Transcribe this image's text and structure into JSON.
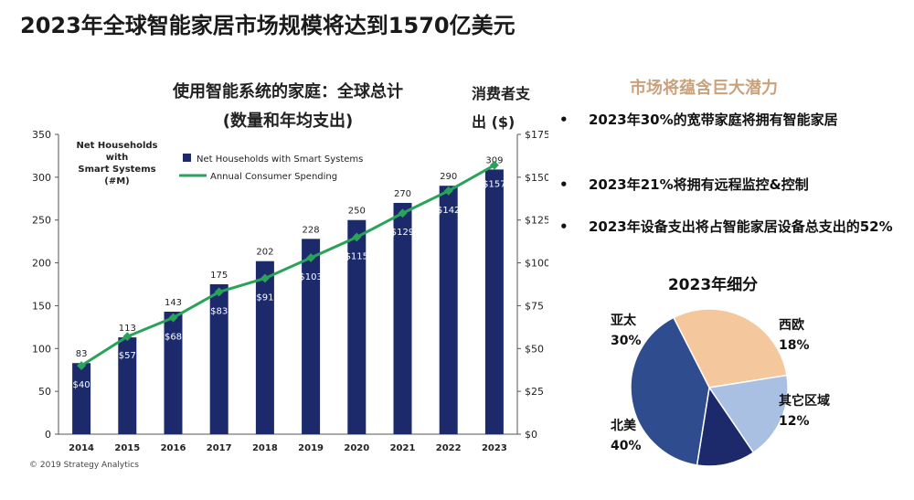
{
  "title": "2023年全球智能家居市场规模将达到1570亿美元",
  "chart_data": [
    {
      "type": "bar",
      "title": "使用智能系统的家庭：全球总计",
      "subtitle": "(数量和年均支出)",
      "categories": [
        "2014",
        "2015",
        "2016",
        "2017",
        "2018",
        "2019",
        "2020",
        "2021",
        "2022",
        "2023"
      ],
      "y_axis_label": "Net Households with Smart Systems (#M)",
      "y2_axis_label": [
        "消费者支",
        "出 ($)"
      ],
      "ylim": [
        0,
        350
      ],
      "yticks": [
        "0",
        "50",
        "100",
        "150",
        "200",
        "250",
        "300",
        "350"
      ],
      "y2lim": [
        0,
        175
      ],
      "y2ticks": [
        "$0",
        "$25",
        "$50",
        "$75",
        "$100",
        "$125",
        "$150",
        "$175"
      ],
      "legend": [
        "Net Households with Smart Systems",
        "Annual Consumer Spending"
      ],
      "legend_position": "top-center",
      "series": [
        {
          "name": "Net Households with Smart Systems",
          "type": "bar",
          "color": "#1c2a6b",
          "values": [
            83,
            113,
            143,
            175,
            202,
            228,
            250,
            270,
            290,
            309
          ],
          "labels": [
            "83",
            "113",
            "143",
            "175",
            "202",
            "228",
            "250",
            "270",
            "290",
            "309"
          ]
        },
        {
          "name": "Annual Consumer Spending",
          "type": "line",
          "axis": "right",
          "color": "#29a35a",
          "values": [
            40,
            57,
            68,
            83,
            91,
            103,
            115,
            129,
            142,
            157
          ],
          "labels": [
            "$40",
            "$57",
            "$68",
            "$83",
            "$91",
            "$103",
            "$115",
            "$129",
            "$142",
            "$157"
          ]
        }
      ],
      "grid": false
    },
    {
      "type": "pie",
      "title": "2023年细分",
      "slices": [
        {
          "label": "亚太",
          "value": 30,
          "value_label": "30%",
          "color": "#f4c79d"
        },
        {
          "label": "西欧",
          "value": 18,
          "value_label": "18%",
          "color": "#a9c0e3"
        },
        {
          "label": "其它区域",
          "value": 12,
          "value_label": "12%",
          "color": "#1c2a6b"
        },
        {
          "label": "北美",
          "value": 40,
          "value_label": "40%",
          "color": "#2f4d8e"
        }
      ]
    }
  ],
  "copyright": "© 2019 Strategy Analytics",
  "panel": {
    "title": "市场将蕴含巨大潜力",
    "bullet_symbol": "•",
    "bullets": [
      "2023年30%的宽带家庭将拥有智能家居",
      "2023年21%将拥有远程监控&控制",
      "2023年设备支出将占智能家居设备总支出的52%"
    ]
  },
  "colors": {
    "bar": "#1c2a6b",
    "line": "#29a35a",
    "panel_title": "#c9a27c"
  }
}
